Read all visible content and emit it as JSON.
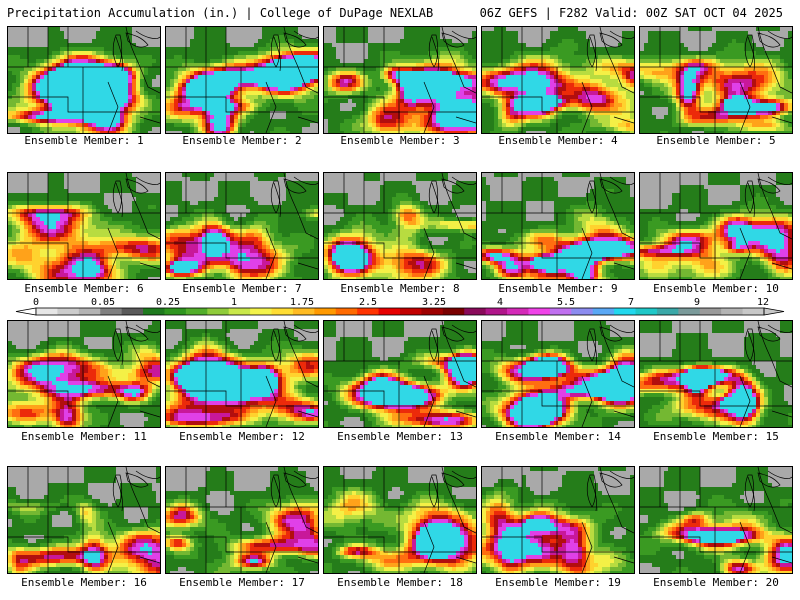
{
  "header": {
    "left": "Precipitation Accumulation (in.) | College of DuPage NEXLAB",
    "right": "06Z GEFS | F282 Valid: 00Z SAT OCT 04 2025"
  },
  "panels": [
    {
      "label": "Ensemble Member: 1",
      "intensity": 0.45,
      "seed": 11
    },
    {
      "label": "Ensemble Member: 2",
      "intensity": 0.85,
      "seed": 23
    },
    {
      "label": "Ensemble Member: 3",
      "intensity": 0.7,
      "seed": 37
    },
    {
      "label": "Ensemble Member: 4",
      "intensity": 0.65,
      "seed": 41
    },
    {
      "label": "Ensemble Member: 5",
      "intensity": 0.8,
      "seed": 53
    },
    {
      "label": "Ensemble Member: 6",
      "intensity": 0.45,
      "seed": 61
    },
    {
      "label": "Ensemble Member: 7",
      "intensity": 0.55,
      "seed": 71
    },
    {
      "label": "Ensemble Member: 8",
      "intensity": 0.3,
      "seed": 83
    },
    {
      "label": "Ensemble Member: 9",
      "intensity": 0.55,
      "seed": 97
    },
    {
      "label": "Ensemble Member: 10",
      "intensity": 0.35,
      "seed": 101
    },
    {
      "label": "Ensemble Member: 11",
      "intensity": 0.4,
      "seed": 113
    },
    {
      "label": "Ensemble Member: 12",
      "intensity": 0.6,
      "seed": 127
    },
    {
      "label": "Ensemble Member: 13",
      "intensity": 0.6,
      "seed": 131
    },
    {
      "label": "Ensemble Member: 14",
      "intensity": 0.75,
      "seed": 149
    },
    {
      "label": "Ensemble Member: 15",
      "intensity": 0.7,
      "seed": 151
    },
    {
      "label": "Ensemble Member: 16",
      "intensity": 0.4,
      "seed": 163
    },
    {
      "label": "Ensemble Member: 17",
      "intensity": 0.45,
      "seed": 173
    },
    {
      "label": "Ensemble Member: 18",
      "intensity": 0.5,
      "seed": 181
    },
    {
      "label": "Ensemble Member: 19",
      "intensity": 0.35,
      "seed": 191
    },
    {
      "label": "Ensemble Member: 20",
      "intensity": 0.8,
      "seed": 199
    }
  ],
  "colorbar": {
    "ticks": [
      "0",
      "0.05",
      "0.25",
      "1",
      "1.75",
      "2.5",
      "3.25",
      "4",
      "5.5",
      "7",
      "9",
      "12"
    ],
    "colors": [
      "#e6e6e6",
      "#cccccc",
      "#b3b3b3",
      "#808080",
      "#5a5a5a",
      "#1e7a1e",
      "#2f961f",
      "#52ae2a",
      "#8fcc3a",
      "#c9e84a",
      "#f3f34a",
      "#ffdd33",
      "#ffbb22",
      "#ff9900",
      "#ff6a00",
      "#ff3300",
      "#e60000",
      "#c20000",
      "#9e0000",
      "#7a0000",
      "#8a0a5a",
      "#b0168a",
      "#d42ab8",
      "#f043e8",
      "#c070f0",
      "#8c8cf0",
      "#5aa8f5",
      "#22d8ee",
      "#1fc8c8",
      "#3aa8a8",
      "#7a9a9a",
      "#9a9a9a",
      "#b4b4b4",
      "#c8c8c8"
    ]
  },
  "palette": {
    "gray": "#a9a9a9",
    "dkgreen": "#257d1a",
    "green": "#3a9a22",
    "ltgreen": "#74b832",
    "yelgreen": "#b8dc40",
    "yellow": "#f4f046",
    "gold": "#ffd22e",
    "orange": "#ffa21a",
    "dkorange": "#ff6e10",
    "red": "#ec2a0a",
    "dkred": "#b20e0e",
    "magenta": "#c8189a",
    "purple": "#e040e8",
    "cyan": "#30d8e6",
    "line": "#000000"
  }
}
